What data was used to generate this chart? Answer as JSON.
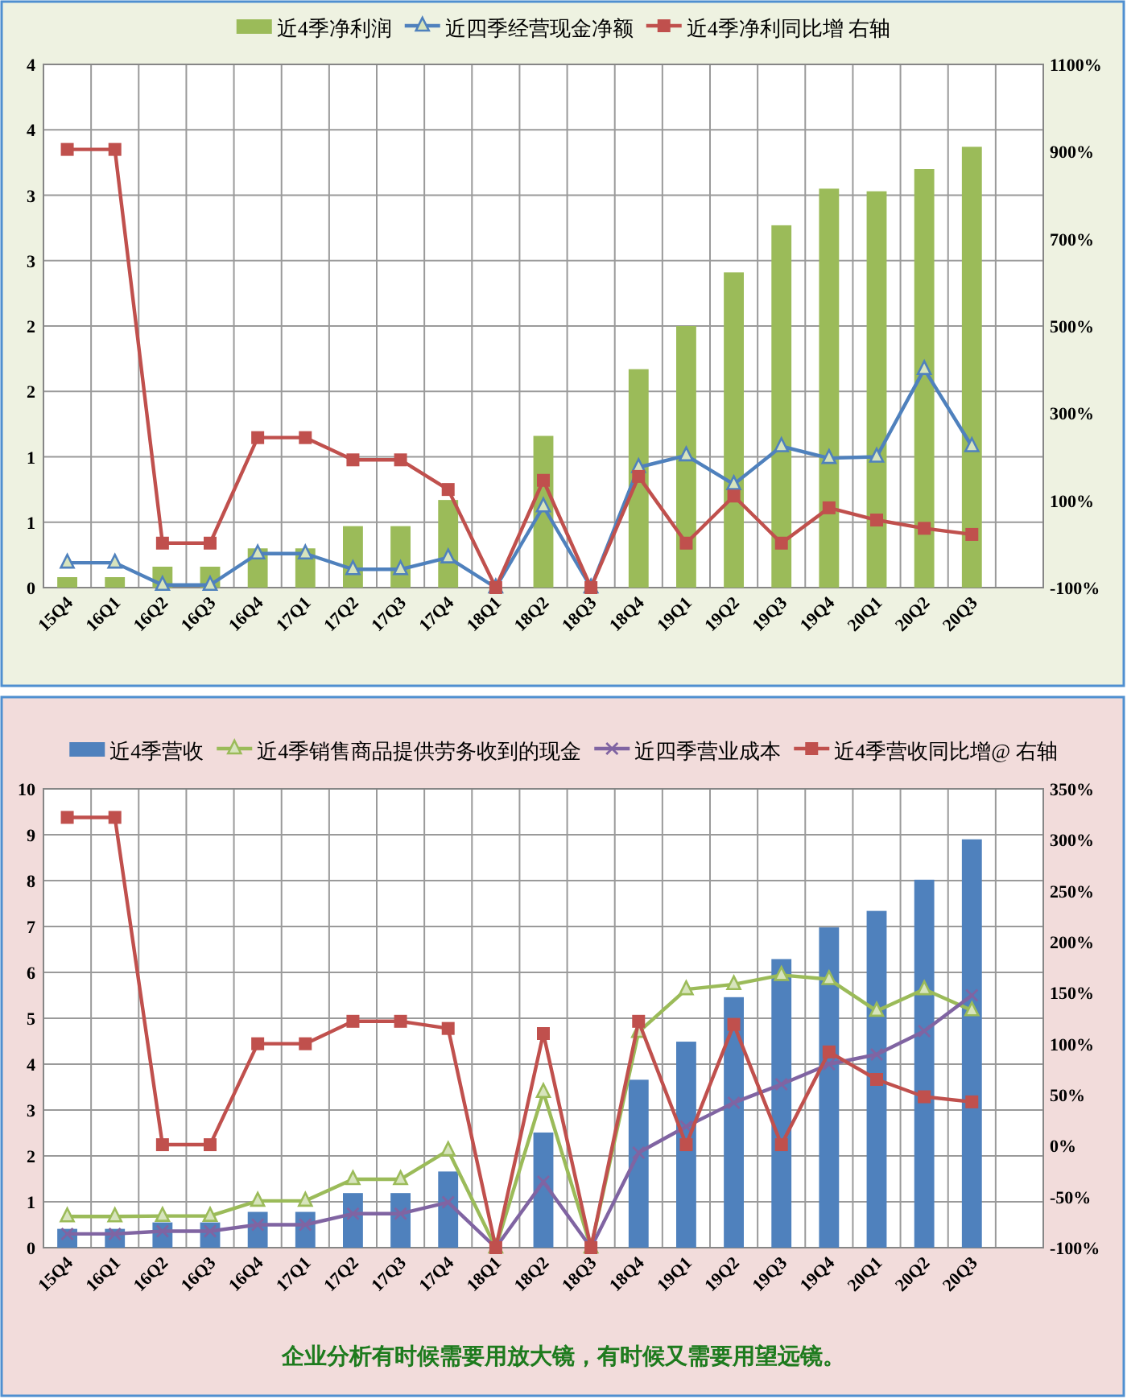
{
  "chart_data": [
    {
      "type": "bar",
      "categories": [
        "15Q4",
        "16Q1",
        "16Q2",
        "16Q3",
        "16Q4",
        "17Q1",
        "17Q2",
        "17Q3",
        "17Q4",
        "18Q1",
        "18Q2",
        "18Q3",
        "18Q4",
        "19Q1",
        "19Q2",
        "19Q3",
        "19Q4",
        "20Q1",
        "20Q2",
        "20Q3",
        null
      ],
      "series": [
        {
          "name": "近4季净利润",
          "color": "#9bbb59",
          "values": [
            0.08,
            0.08,
            0.16,
            0.16,
            0.3,
            0.3,
            0.47,
            0.47,
            0.67,
            0,
            1.16,
            0,
            1.67,
            2.0,
            2.41,
            2.77,
            3.05,
            3.03,
            3.2,
            3.37,
            null
          ]
        },
        {
          "name": "近四季经营现金净额",
          "type": "line",
          "color": "#4f81bd",
          "marker": "triangle",
          "values": [
            0.19,
            0.19,
            0.02,
            0.02,
            0.26,
            0.26,
            0.14,
            0.14,
            0.23,
            0,
            0.62,
            0,
            0.92,
            1.01,
            0.79,
            1.08,
            0.99,
            1.0,
            1.67,
            1.08,
            null
          ]
        },
        {
          "name": "近4季净利同比增 右轴",
          "type": "line",
          "axis": "y2",
          "color": "#c0504d",
          "marker": "square",
          "values": [
            905,
            905,
            2,
            2,
            244,
            244,
            193,
            193,
            125,
            -100,
            146,
            -100,
            155,
            2,
            110,
            2,
            83,
            55,
            36,
            22,
            null
          ]
        }
      ],
      "ylim": [
        0,
        4
      ],
      "yticks": [
        0,
        {
          "value": 0.5,
          "label": "1"
        },
        1,
        {
          "value": 1.5,
          "label": "2"
        },
        2,
        {
          "value": 2.5,
          "label": "3"
        },
        3,
        {
          "value": 3.5,
          "label": "4"
        },
        4
      ],
      "y2lim": [
        -100,
        1100
      ],
      "y2ticks": [
        {
          "value": -100,
          "label": "-100%"
        },
        {
          "value": 100,
          "label": "100%"
        },
        {
          "value": 300,
          "label": "300%"
        },
        {
          "value": 500,
          "label": "500%"
        },
        {
          "value": 700,
          "label": "700%"
        },
        {
          "value": 900,
          "label": "900%"
        },
        {
          "value": 1100,
          "label": "1100%"
        }
      ],
      "grid": true,
      "legend": "top",
      "line_style": "solid"
    },
    {
      "type": "bar",
      "categories": [
        "15Q4",
        "16Q1",
        "16Q2",
        "16Q3",
        "16Q4",
        "17Q1",
        "17Q2",
        "17Q3",
        "17Q4",
        "18Q1",
        "18Q2",
        "18Q3",
        "18Q4",
        "19Q1",
        "19Q2",
        "19Q3",
        "19Q4",
        "20Q1",
        "20Q2",
        "20Q3",
        null
      ],
      "series": [
        {
          "name": "近4季营收",
          "color": "#4f81bd",
          "values": [
            0.41,
            0.41,
            0.55,
            0.55,
            0.78,
            0.78,
            1.19,
            1.19,
            1.66,
            0,
            2.51,
            0,
            3.66,
            4.49,
            5.46,
            6.29,
            6.98,
            7.34,
            8.02,
            8.9,
            null
          ]
        },
        {
          "name": "近4季销售商品提供劳务收到的现金",
          "type": "line",
          "color": "#9bbb59",
          "marker": "triangle",
          "values": [
            0.68,
            0.68,
            0.69,
            0.69,
            1.02,
            1.02,
            1.49,
            1.49,
            2.12,
            0,
            3.39,
            0,
            4.7,
            5.63,
            5.74,
            5.94,
            5.85,
            5.16,
            5.63,
            5.17,
            null
          ]
        },
        {
          "name": "近四季营业成本",
          "type": "line",
          "color": "#8064a2",
          "marker": "cross",
          "values": [
            0.3,
            0.3,
            0.36,
            0.36,
            0.5,
            0.5,
            0.74,
            0.74,
            0.99,
            0,
            1.44,
            0,
            2.07,
            2.64,
            3.16,
            3.56,
            4.0,
            4.21,
            4.72,
            5.5,
            null
          ]
        },
        {
          "name": "近4季营收同比增@ 右轴",
          "type": "line",
          "axis": "y2",
          "color": "#c0504d",
          "marker": "square",
          "values": [
            322,
            322,
            1,
            1,
            100,
            100,
            122,
            122,
            115,
            -100,
            110,
            -100,
            122,
            1,
            119,
            1,
            92,
            65,
            48,
            43,
            null
          ]
        }
      ],
      "ylim": [
        0,
        10
      ],
      "yticks": [
        0,
        1,
        2,
        3,
        4,
        5,
        6,
        7,
        8,
        9,
        10
      ],
      "y2lim": [
        -100,
        350
      ],
      "y2ticks": [
        {
          "value": -100,
          "label": "-100%"
        },
        {
          "value": -50,
          "label": "-50%"
        },
        {
          "value": 0,
          "label": "0%"
        },
        {
          "value": 50,
          "label": "50%"
        },
        {
          "value": 100,
          "label": "100%"
        },
        {
          "value": 150,
          "label": "150%"
        },
        {
          "value": 200,
          "label": "200%"
        },
        {
          "value": 250,
          "label": "250%"
        },
        {
          "value": 300,
          "label": "300%"
        },
        {
          "value": 350,
          "label": "350%"
        }
      ],
      "grid": true,
      "legend": "top",
      "line_style": "solid",
      "annotations": [
        "企业分析有时候需要用放大镜，有时候又需要用望远镜。"
      ]
    }
  ]
}
